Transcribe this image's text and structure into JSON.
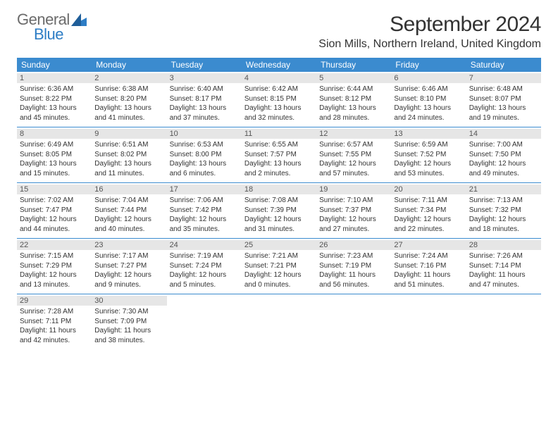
{
  "brand": {
    "word1": "General",
    "word2": "Blue",
    "word1_color": "#6b6b6b",
    "word2_color": "#2d7dc5"
  },
  "title": "September 2024",
  "location": "Sion Mills, Northern Ireland, United Kingdom",
  "header_bg": "#3b8bcf",
  "day_header_bg": "#e6e6e6",
  "days_of_week": [
    "Sunday",
    "Monday",
    "Tuesday",
    "Wednesday",
    "Thursday",
    "Friday",
    "Saturday"
  ],
  "weeks": [
    [
      {
        "n": "1",
        "sr": "Sunrise: 6:36 AM",
        "ss": "Sunset: 8:22 PM",
        "d1": "Daylight: 13 hours",
        "d2": "and 45 minutes."
      },
      {
        "n": "2",
        "sr": "Sunrise: 6:38 AM",
        "ss": "Sunset: 8:20 PM",
        "d1": "Daylight: 13 hours",
        "d2": "and 41 minutes."
      },
      {
        "n": "3",
        "sr": "Sunrise: 6:40 AM",
        "ss": "Sunset: 8:17 PM",
        "d1": "Daylight: 13 hours",
        "d2": "and 37 minutes."
      },
      {
        "n": "4",
        "sr": "Sunrise: 6:42 AM",
        "ss": "Sunset: 8:15 PM",
        "d1": "Daylight: 13 hours",
        "d2": "and 32 minutes."
      },
      {
        "n": "5",
        "sr": "Sunrise: 6:44 AM",
        "ss": "Sunset: 8:12 PM",
        "d1": "Daylight: 13 hours",
        "d2": "and 28 minutes."
      },
      {
        "n": "6",
        "sr": "Sunrise: 6:46 AM",
        "ss": "Sunset: 8:10 PM",
        "d1": "Daylight: 13 hours",
        "d2": "and 24 minutes."
      },
      {
        "n": "7",
        "sr": "Sunrise: 6:48 AM",
        "ss": "Sunset: 8:07 PM",
        "d1": "Daylight: 13 hours",
        "d2": "and 19 minutes."
      }
    ],
    [
      {
        "n": "8",
        "sr": "Sunrise: 6:49 AM",
        "ss": "Sunset: 8:05 PM",
        "d1": "Daylight: 13 hours",
        "d2": "and 15 minutes."
      },
      {
        "n": "9",
        "sr": "Sunrise: 6:51 AM",
        "ss": "Sunset: 8:02 PM",
        "d1": "Daylight: 13 hours",
        "d2": "and 11 minutes."
      },
      {
        "n": "10",
        "sr": "Sunrise: 6:53 AM",
        "ss": "Sunset: 8:00 PM",
        "d1": "Daylight: 13 hours",
        "d2": "and 6 minutes."
      },
      {
        "n": "11",
        "sr": "Sunrise: 6:55 AM",
        "ss": "Sunset: 7:57 PM",
        "d1": "Daylight: 13 hours",
        "d2": "and 2 minutes."
      },
      {
        "n": "12",
        "sr": "Sunrise: 6:57 AM",
        "ss": "Sunset: 7:55 PM",
        "d1": "Daylight: 12 hours",
        "d2": "and 57 minutes."
      },
      {
        "n": "13",
        "sr": "Sunrise: 6:59 AM",
        "ss": "Sunset: 7:52 PM",
        "d1": "Daylight: 12 hours",
        "d2": "and 53 minutes."
      },
      {
        "n": "14",
        "sr": "Sunrise: 7:00 AM",
        "ss": "Sunset: 7:50 PM",
        "d1": "Daylight: 12 hours",
        "d2": "and 49 minutes."
      }
    ],
    [
      {
        "n": "15",
        "sr": "Sunrise: 7:02 AM",
        "ss": "Sunset: 7:47 PM",
        "d1": "Daylight: 12 hours",
        "d2": "and 44 minutes."
      },
      {
        "n": "16",
        "sr": "Sunrise: 7:04 AM",
        "ss": "Sunset: 7:44 PM",
        "d1": "Daylight: 12 hours",
        "d2": "and 40 minutes."
      },
      {
        "n": "17",
        "sr": "Sunrise: 7:06 AM",
        "ss": "Sunset: 7:42 PM",
        "d1": "Daylight: 12 hours",
        "d2": "and 35 minutes."
      },
      {
        "n": "18",
        "sr": "Sunrise: 7:08 AM",
        "ss": "Sunset: 7:39 PM",
        "d1": "Daylight: 12 hours",
        "d2": "and 31 minutes."
      },
      {
        "n": "19",
        "sr": "Sunrise: 7:10 AM",
        "ss": "Sunset: 7:37 PM",
        "d1": "Daylight: 12 hours",
        "d2": "and 27 minutes."
      },
      {
        "n": "20",
        "sr": "Sunrise: 7:11 AM",
        "ss": "Sunset: 7:34 PM",
        "d1": "Daylight: 12 hours",
        "d2": "and 22 minutes."
      },
      {
        "n": "21",
        "sr": "Sunrise: 7:13 AM",
        "ss": "Sunset: 7:32 PM",
        "d1": "Daylight: 12 hours",
        "d2": "and 18 minutes."
      }
    ],
    [
      {
        "n": "22",
        "sr": "Sunrise: 7:15 AM",
        "ss": "Sunset: 7:29 PM",
        "d1": "Daylight: 12 hours",
        "d2": "and 13 minutes."
      },
      {
        "n": "23",
        "sr": "Sunrise: 7:17 AM",
        "ss": "Sunset: 7:27 PM",
        "d1": "Daylight: 12 hours",
        "d2": "and 9 minutes."
      },
      {
        "n": "24",
        "sr": "Sunrise: 7:19 AM",
        "ss": "Sunset: 7:24 PM",
        "d1": "Daylight: 12 hours",
        "d2": "and 5 minutes."
      },
      {
        "n": "25",
        "sr": "Sunrise: 7:21 AM",
        "ss": "Sunset: 7:21 PM",
        "d1": "Daylight: 12 hours",
        "d2": "and 0 minutes."
      },
      {
        "n": "26",
        "sr": "Sunrise: 7:23 AM",
        "ss": "Sunset: 7:19 PM",
        "d1": "Daylight: 11 hours",
        "d2": "and 56 minutes."
      },
      {
        "n": "27",
        "sr": "Sunrise: 7:24 AM",
        "ss": "Sunset: 7:16 PM",
        "d1": "Daylight: 11 hours",
        "d2": "and 51 minutes."
      },
      {
        "n": "28",
        "sr": "Sunrise: 7:26 AM",
        "ss": "Sunset: 7:14 PM",
        "d1": "Daylight: 11 hours",
        "d2": "and 47 minutes."
      }
    ],
    [
      {
        "n": "29",
        "sr": "Sunrise: 7:28 AM",
        "ss": "Sunset: 7:11 PM",
        "d1": "Daylight: 11 hours",
        "d2": "and 42 minutes."
      },
      {
        "n": "30",
        "sr": "Sunrise: 7:30 AM",
        "ss": "Sunset: 7:09 PM",
        "d1": "Daylight: 11 hours",
        "d2": "and 38 minutes."
      },
      null,
      null,
      null,
      null,
      null
    ]
  ]
}
